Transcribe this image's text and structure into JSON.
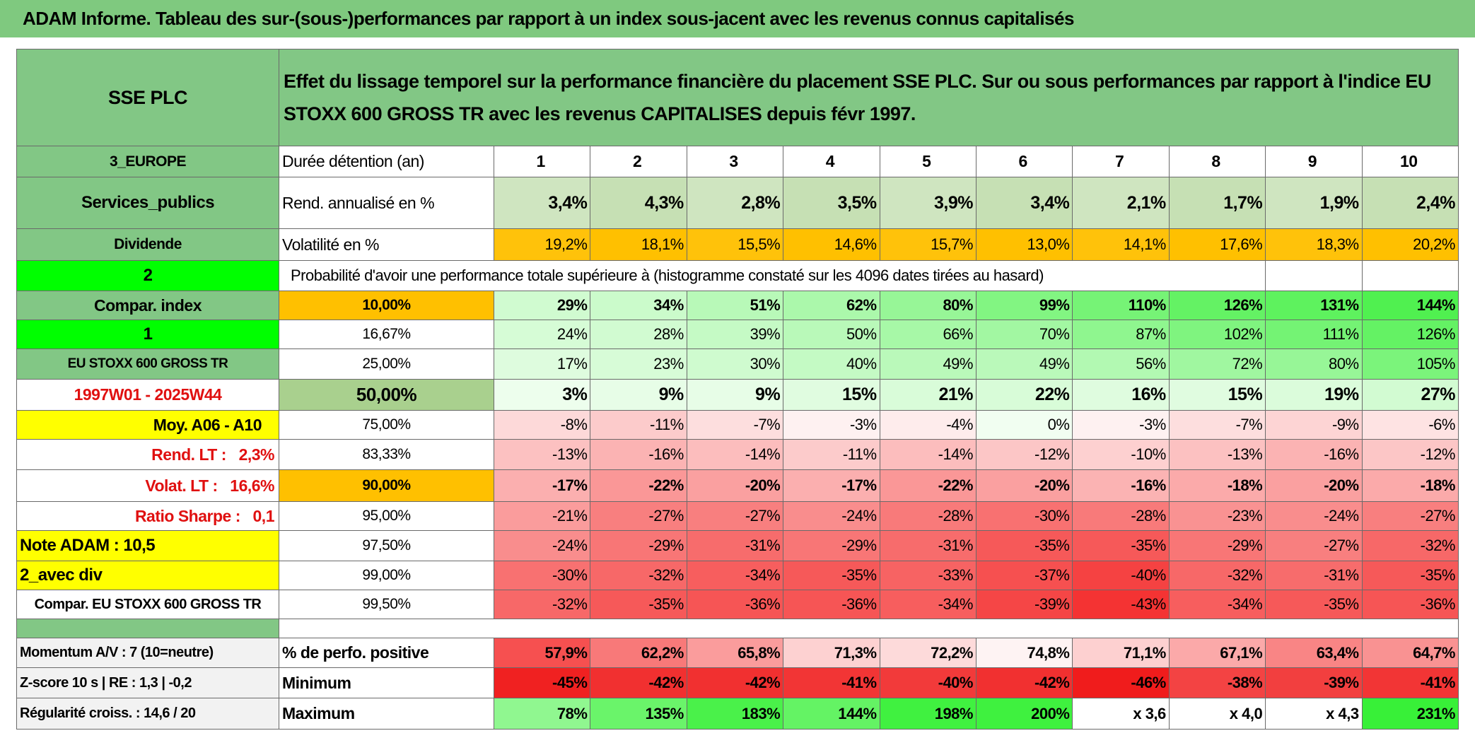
{
  "title": "ADAM Informe. Tableau des sur-(sous-)performances par rapport à un index sous-jacent avec les revenus connus capitalisés",
  "header": {
    "name": "SSE PLC",
    "description": "Effet du lissage temporel sur la performance financière du placement SSE PLC. Sur ou sous performances par rapport à l'indice EU STOXX 600 GROSS TR avec les revenus CAPITALISES depuis févr 1997."
  },
  "rows": [
    [
      "3_EUROPE",
      "Durée détention (an)",
      "1",
      "2",
      "3",
      "4",
      "5",
      "6",
      "7",
      "8",
      "9",
      "10"
    ],
    [
      "Services_publics",
      "Rend. annualisé en %",
      "3,4%",
      "4,3%",
      "2,8%",
      "3,5%",
      "3,9%",
      "3,4%",
      "2,1%",
      "1,7%",
      "1,9%",
      "2,4%"
    ],
    [
      "Dividende",
      "Volatilité en %",
      "19,2%",
      "18,1%",
      "15,5%",
      "14,6%",
      "15,7%",
      "13,0%",
      "14,1%",
      "17,6%",
      "18,3%",
      "20,2%"
    ],
    [
      "2",
      "Probabilité d'avoir une performance totale supérieure à (histogramme constaté sur les 4096 dates tirées au hasard)"
    ],
    [
      "Compar. index",
      "10,00%",
      "29%",
      "34%",
      "51%",
      "62%",
      "80%",
      "99%",
      "110%",
      "126%",
      "131%",
      "144%"
    ],
    [
      "1",
      "16,67%",
      "24%",
      "28%",
      "39%",
      "50%",
      "66%",
      "70%",
      "87%",
      "102%",
      "111%",
      "126%"
    ],
    [
      "EU STOXX 600 GROSS TR",
      "25,00%",
      "17%",
      "23%",
      "30%",
      "40%",
      "49%",
      "49%",
      "56%",
      "72%",
      "80%",
      "105%"
    ],
    [
      "1997W01 - 2025W44",
      "50,00%",
      "3%",
      "9%",
      "9%",
      "15%",
      "21%",
      "22%",
      "16%",
      "15%",
      "19%",
      "27%"
    ],
    [
      "Moy. A06 - A10",
      "75,00%",
      "-8%",
      "-11%",
      "-7%",
      "-3%",
      "-4%",
      "0%",
      "-3%",
      "-7%",
      "-9%",
      "-6%"
    ],
    [
      "Rend. LT :   2,3%",
      "83,33%",
      "-13%",
      "-16%",
      "-14%",
      "-11%",
      "-14%",
      "-12%",
      "-10%",
      "-13%",
      "-16%",
      "-12%"
    ],
    [
      "Volat. LT :   16,6%",
      "90,00%",
      "-17%",
      "-22%",
      "-20%",
      "-17%",
      "-22%",
      "-20%",
      "-16%",
      "-18%",
      "-20%",
      "-18%"
    ],
    [
      "Ratio Sharpe :   0,1",
      "95,00%",
      "-21%",
      "-27%",
      "-27%",
      "-24%",
      "-28%",
      "-30%",
      "-28%",
      "-23%",
      "-24%",
      "-27%"
    ],
    [
      "Note ADAM : 10,5",
      "97,50%",
      "-24%",
      "-29%",
      "-31%",
      "-29%",
      "-31%",
      "-35%",
      "-35%",
      "-29%",
      "-27%",
      "-32%"
    ],
    [
      "2_avec div",
      "99,00%",
      "-30%",
      "-32%",
      "-34%",
      "-35%",
      "-33%",
      "-37%",
      "-40%",
      "-32%",
      "-31%",
      "-35%"
    ],
    [
      "Compar. EU STOXX 600 GROSS TR",
      "99,50%",
      "-32%",
      "-35%",
      "-36%",
      "-36%",
      "-34%",
      "-39%",
      "-43%",
      "-34%",
      "-35%",
      "-36%"
    ],
    [
      "Momentum A/V : 7 (10=neutre)",
      "% de perfo. positive",
      "57,9%",
      "62,2%",
      "65,8%",
      "71,3%",
      "72,2%",
      "74,8%",
      "71,1%",
      "67,1%",
      "63,4%",
      "64,7%"
    ],
    [
      "Z-score 10 s | RE : 1,3 | -0,2",
      "Minimum",
      "-45%",
      "-42%",
      "-42%",
      "-41%",
      "-40%",
      "-42%",
      "-46%",
      "-38%",
      "-39%",
      "-41%"
    ],
    [
      "Régularité croiss. : 14,6 / 20",
      "Maximum",
      "78%",
      "135%",
      "183%",
      "144%",
      "198%",
      "200%",
      "x 3,6",
      "x 4,0",
      "x 4,3",
      "231%"
    ]
  ]
}
